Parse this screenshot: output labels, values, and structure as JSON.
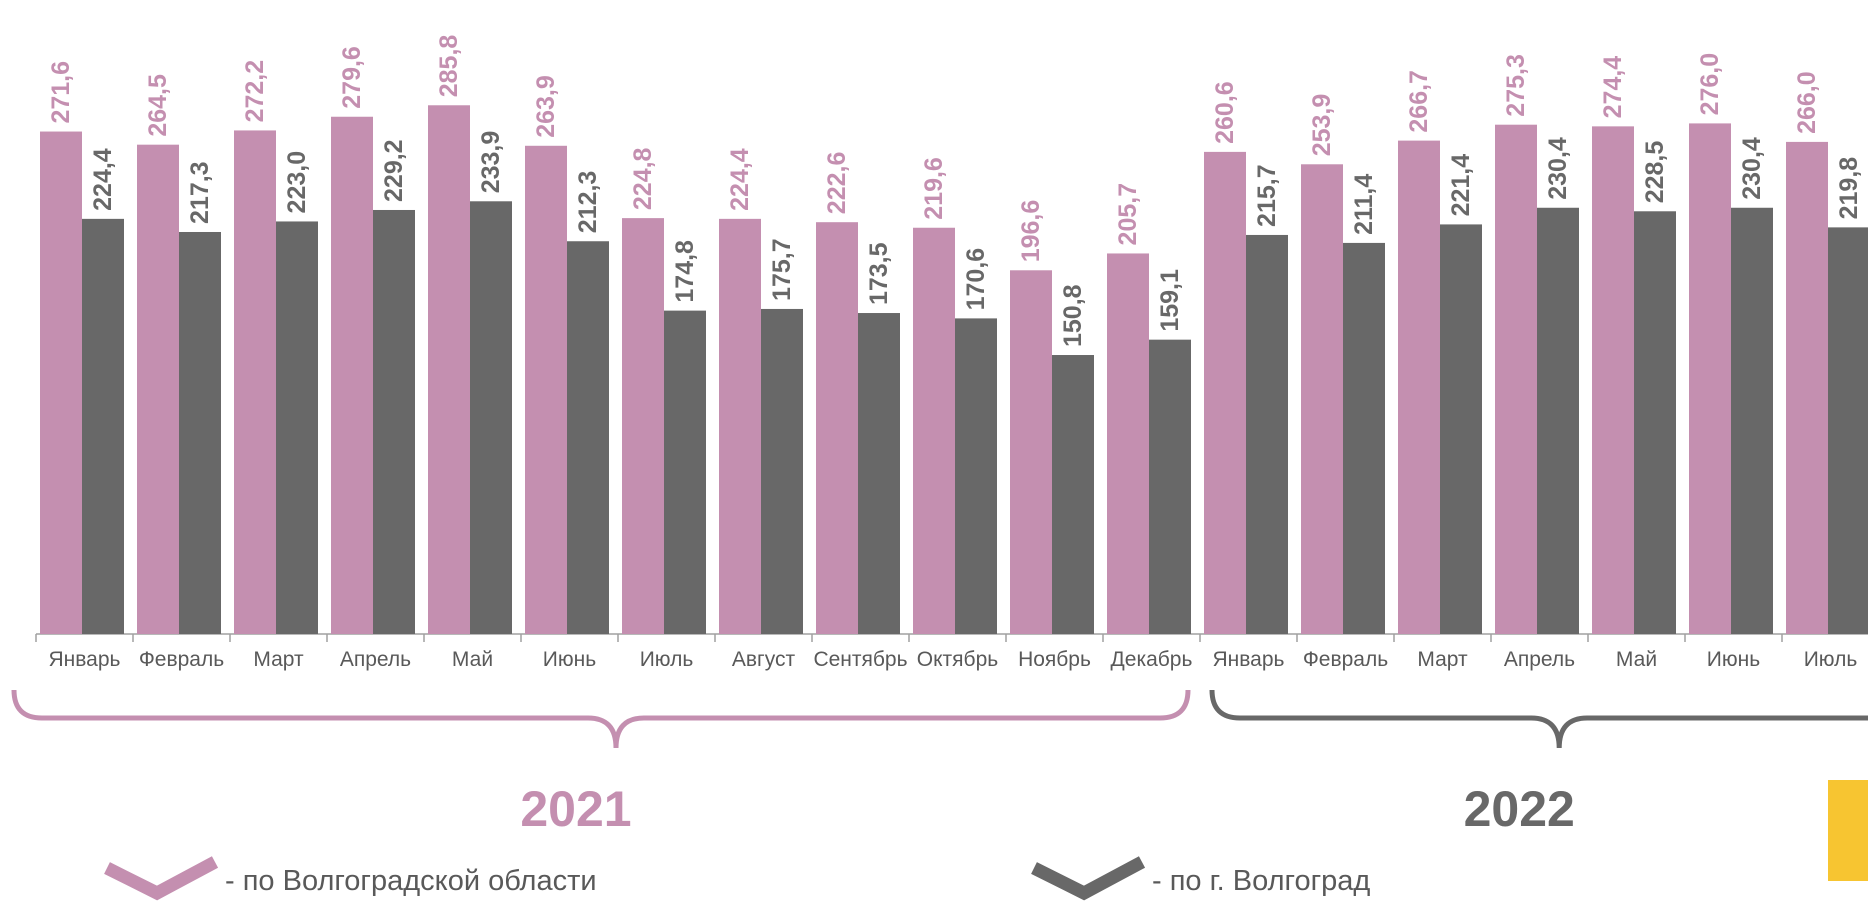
{
  "chart_data": {
    "type": "bar",
    "categories": [
      "Январь",
      "Февраль",
      "Март",
      "Апрель",
      "Май",
      "Июнь",
      "Июль",
      "Август",
      "Сентябрь",
      "Октябрь",
      "Ноябрь",
      "Декабрь",
      "Январь",
      "Февраль",
      "Март",
      "Апрель",
      "Май",
      "Июнь",
      "Июль"
    ],
    "series": [
      {
        "name": "- по Волгоградской области",
        "color": "#c48fb0",
        "values": [
          271.6,
          264.5,
          272.2,
          279.6,
          285.8,
          263.9,
          224.8,
          224.4,
          222.6,
          219.6,
          196.6,
          205.7,
          260.6,
          253.9,
          266.7,
          275.3,
          274.4,
          276.0,
          266.0
        ],
        "value_labels": [
          "271,6",
          "264,5",
          "272,2",
          "279,6",
          "285,8",
          "263,9",
          "224,8",
          "224,4",
          "222,6",
          "219,6",
          "196,6",
          "205,7",
          "260,6",
          "253,9",
          "266,7",
          "275,3",
          "274,4",
          "276,0",
          "266,0"
        ]
      },
      {
        "name": "-  по г. Волгоград",
        "color": "#686868",
        "values": [
          224.4,
          217.3,
          223.0,
          229.2,
          233.9,
          212.3,
          174.8,
          175.7,
          173.5,
          170.6,
          150.8,
          159.1,
          215.7,
          211.4,
          221.4,
          230.4,
          228.5,
          230.4,
          219.8
        ],
        "value_labels": [
          "224,4",
          "217,3",
          "223,0",
          "229,2",
          "233,9",
          "212,3",
          "174,8",
          "175,7",
          "173,5",
          "170,6",
          "150,8",
          "159,1",
          "215,7",
          "211,4",
          "221,4",
          "230,4",
          "228,5",
          "230,4",
          "219,8"
        ]
      }
    ],
    "year_groups": [
      {
        "label": "2021",
        "color": "#c48fb0"
      },
      {
        "label": "2022",
        "color": "#686868"
      }
    ]
  }
}
